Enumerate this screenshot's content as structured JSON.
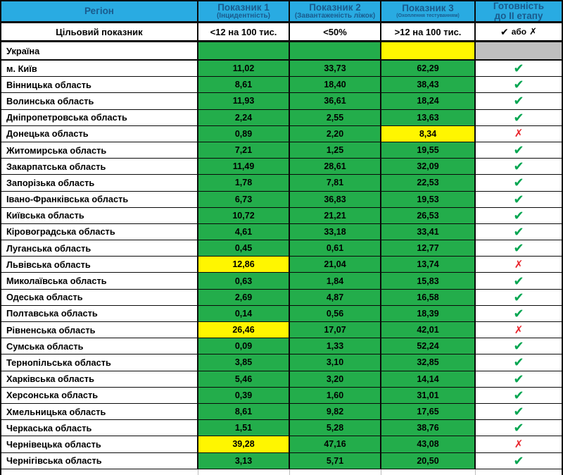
{
  "colors": {
    "header_blue": "#29ABE2",
    "header_text": "#1A5B8D",
    "cell_green": "#23AD4B",
    "cell_yellow": "#FFF600",
    "cell_gray": "#BFBFBF",
    "check_green": "#00A550",
    "cross_red": "#E8232A",
    "border_black": "#0A0A0A"
  },
  "icons": {
    "check": "✔",
    "cross": "✗"
  },
  "table": {
    "header": {
      "region": "Регіон",
      "col1_title": "Показник 1",
      "col1_sub": "(Інцидентність)",
      "col2_title": "Показник 2",
      "col2_sub": "(Завантаженість ліжок)",
      "col3_title": "Показник 3",
      "col3_sub": "(Охоплення тестуванням)",
      "col4_line1": "Готовність",
      "col4_line2": "до II етапу"
    },
    "target": {
      "label": "Цільовий показник",
      "col1": "<12 на 100 тис.",
      "col2": "<50%",
      "col3": ">12 на 100 тис.",
      "col4_text": "або"
    },
    "ukraine": {
      "label": "Україна",
      "cells": [
        "green",
        "green",
        "yellow",
        "gray"
      ]
    },
    "rows": [
      {
        "region": "м. Київ",
        "values": [
          "11,02",
          "33,73",
          "62,29"
        ],
        "highlight": [
          false,
          false,
          false
        ],
        "ready": "check"
      },
      {
        "region": "Вінницька область",
        "values": [
          "8,61",
          "18,40",
          "38,43"
        ],
        "highlight": [
          false,
          false,
          false
        ],
        "ready": "check"
      },
      {
        "region": "Волинська область",
        "values": [
          "11,93",
          "36,61",
          "18,24"
        ],
        "highlight": [
          false,
          false,
          false
        ],
        "ready": "check"
      },
      {
        "region": "Дніпропетровська область",
        "values": [
          "2,24",
          "2,55",
          "13,63"
        ],
        "highlight": [
          false,
          false,
          false
        ],
        "ready": "check"
      },
      {
        "region": "Донецька область",
        "values": [
          "0,89",
          "2,20",
          "8,34"
        ],
        "highlight": [
          false,
          false,
          true
        ],
        "ready": "cross"
      },
      {
        "region": "Житомирська область",
        "values": [
          "7,21",
          "1,25",
          "19,55"
        ],
        "highlight": [
          false,
          false,
          false
        ],
        "ready": "check"
      },
      {
        "region": "Закарпатська область",
        "values": [
          "11,49",
          "28,61",
          "32,09"
        ],
        "highlight": [
          false,
          false,
          false
        ],
        "ready": "check"
      },
      {
        "region": "Запорізька область",
        "values": [
          "1,78",
          "7,81",
          "22,53"
        ],
        "highlight": [
          false,
          false,
          false
        ],
        "ready": "check"
      },
      {
        "region": "Івано-Франківська область",
        "values": [
          "6,73",
          "36,83",
          "19,53"
        ],
        "highlight": [
          false,
          false,
          false
        ],
        "ready": "check"
      },
      {
        "region": "Київська область",
        "values": [
          "10,72",
          "21,21",
          "26,53"
        ],
        "highlight": [
          false,
          false,
          false
        ],
        "ready": "check"
      },
      {
        "region": "Кіровоградська область",
        "values": [
          "4,61",
          "33,18",
          "33,41"
        ],
        "highlight": [
          false,
          false,
          false
        ],
        "ready": "check"
      },
      {
        "region": "Луганська область",
        "values": [
          "0,45",
          "0,61",
          "12,77"
        ],
        "highlight": [
          false,
          false,
          false
        ],
        "ready": "check"
      },
      {
        "region": "Львівська область",
        "values": [
          "12,86",
          "21,04",
          "13,74"
        ],
        "highlight": [
          true,
          false,
          false
        ],
        "ready": "cross"
      },
      {
        "region": "Миколаївська область",
        "values": [
          "0,63",
          "1,84",
          "15,83"
        ],
        "highlight": [
          false,
          false,
          false
        ],
        "ready": "check"
      },
      {
        "region": "Одеська область",
        "values": [
          "2,69",
          "4,87",
          "16,58"
        ],
        "highlight": [
          false,
          false,
          false
        ],
        "ready": "check"
      },
      {
        "region": "Полтавська область",
        "values": [
          "0,14",
          "0,56",
          "18,39"
        ],
        "highlight": [
          false,
          false,
          false
        ],
        "ready": "check"
      },
      {
        "region": "Рівненська область",
        "values": [
          "26,46",
          "17,07",
          "42,01"
        ],
        "highlight": [
          true,
          false,
          false
        ],
        "ready": "cross"
      },
      {
        "region": "Сумська область",
        "values": [
          "0,09",
          "1,33",
          "52,24"
        ],
        "highlight": [
          false,
          false,
          false
        ],
        "ready": "check"
      },
      {
        "region": "Тернопільська область",
        "values": [
          "3,85",
          "3,10",
          "32,85"
        ],
        "highlight": [
          false,
          false,
          false
        ],
        "ready": "check"
      },
      {
        "region": "Харківська область",
        "values": [
          "5,46",
          "3,20",
          "14,14"
        ],
        "highlight": [
          false,
          false,
          false
        ],
        "ready": "check"
      },
      {
        "region": "Херсонська область",
        "values": [
          "0,39",
          "1,60",
          "31,01"
        ],
        "highlight": [
          false,
          false,
          false
        ],
        "ready": "check"
      },
      {
        "region": "Хмельницька область",
        "values": [
          "8,61",
          "9,82",
          "17,65"
        ],
        "highlight": [
          false,
          false,
          false
        ],
        "ready": "check"
      },
      {
        "region": "Черкаська область",
        "values": [
          "1,51",
          "5,28",
          "38,76"
        ],
        "highlight": [
          false,
          false,
          false
        ],
        "ready": "check"
      },
      {
        "region": "Чернівецька область",
        "values": [
          "39,28",
          "47,16",
          "43,08"
        ],
        "highlight": [
          true,
          false,
          false
        ],
        "ready": "cross"
      },
      {
        "region": "Чернігівська область",
        "values": [
          "3,13",
          "5,71",
          "20,50"
        ],
        "highlight": [
          false,
          false,
          false
        ],
        "ready": "check"
      }
    ]
  }
}
